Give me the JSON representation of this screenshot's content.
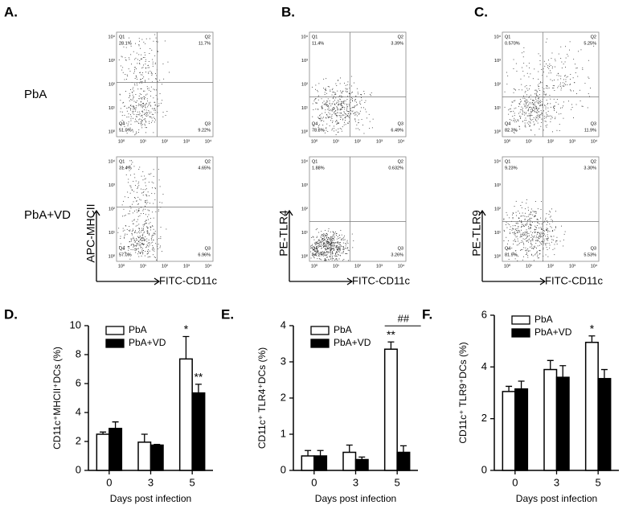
{
  "panels": [
    {
      "label": "A.",
      "y_label": "APC-MHCII",
      "x_label": "FITC-CD11c",
      "plots": [
        {
          "quadrants": [
            "Q1",
            "Q2",
            "Q4",
            "Q3"
          ],
          "percents": [
            "28.1%",
            "11.7%",
            "51.0%",
            "9.22%"
          ]
        },
        {
          "quadrants": [
            "Q1",
            "Q2",
            "Q4",
            "Q3"
          ],
          "percents": [
            "31.4%",
            "4.65%",
            "57.0%",
            "6.96%"
          ]
        }
      ]
    },
    {
      "label": "B.",
      "y_label": "PE-TLR4",
      "x_label": "FITC-CD11c",
      "plots": [
        {
          "quadrants": [
            "Q1",
            "Q2",
            "Q4",
            "Q3"
          ],
          "percents": [
            "11.4%",
            "3.39%",
            "78.8%",
            "6.49%"
          ]
        },
        {
          "quadrants": [
            "Q1",
            "Q2",
            "Q4",
            "Q3"
          ],
          "percents": [
            "1.88%",
            "0.632%",
            "94.2%",
            "3.26%"
          ]
        }
      ]
    },
    {
      "label": "C.",
      "y_label": "PE-TLR9",
      "x_label": "FITC-CD11c",
      "plots": [
        {
          "quadrants": [
            "Q1",
            "Q2",
            "Q4",
            "Q3"
          ],
          "percents": [
            "0.570%",
            "5.25%",
            "82.3%",
            "11.9%"
          ]
        },
        {
          "quadrants": [
            "Q1",
            "Q2",
            "Q4",
            "Q3"
          ],
          "percents": [
            "9.23%",
            "3.30%",
            "81.9%",
            "5.53%"
          ]
        }
      ]
    }
  ],
  "row_labels": [
    "PbA",
    "PbA+VD"
  ],
  "decade_lim": [
    0,
    4
  ],
  "decade_ticks": [
    {
      "value": 0,
      "label": "10⁰"
    },
    {
      "value": 1,
      "label": "10¹"
    },
    {
      "value": 2,
      "label": "10²"
    },
    {
      "value": 3,
      "label": "10³"
    },
    {
      "value": 4,
      "label": "10⁴"
    }
  ],
  "chart_data": [
    {
      "type": "bar",
      "panel": "D.",
      "y_label": "CD11c⁺MHCII⁺DCs (%)",
      "x_label": "Days post infection",
      "categories": [
        "0",
        "3",
        "5"
      ],
      "ylim": [
        0,
        10
      ],
      "yticks": [
        0,
        2,
        4,
        6,
        8,
        10
      ],
      "series": [
        {
          "name": "PbA",
          "color": "#ffffff",
          "values": [
            2.5,
            1.95,
            7.7
          ],
          "errors": [
            0.15,
            0.55,
            1.55
          ],
          "significance": [
            null,
            null,
            "*"
          ]
        },
        {
          "name": "PbA+VD",
          "color": "#000000",
          "values": [
            2.9,
            1.75,
            5.35
          ],
          "errors": [
            0.45,
            0.05,
            0.6
          ],
          "significance": [
            null,
            null,
            "**"
          ]
        }
      ]
    },
    {
      "type": "bar",
      "panel": "E.",
      "y_label": "CD11c⁺ TLR4⁺DCs (%)",
      "x_label": "Days post infection",
      "categories": [
        "0",
        "3",
        "5"
      ],
      "ylim": [
        0,
        4
      ],
      "yticks": [
        0,
        1,
        2,
        3,
        4
      ],
      "series": [
        {
          "name": "PbA",
          "color": "#ffffff",
          "values": [
            0.4,
            0.5,
            3.35
          ],
          "errors": [
            0.15,
            0.2,
            0.2
          ],
          "significance": [
            null,
            null,
            "**"
          ]
        },
        {
          "name": "PbA+VD",
          "color": "#000000",
          "values": [
            0.4,
            0.3,
            0.5
          ],
          "errors": [
            0.15,
            0.07,
            0.18
          ],
          "significance": [
            null,
            null,
            null
          ]
        }
      ],
      "group_annotation": [
        null,
        null,
        "##"
      ]
    },
    {
      "type": "bar",
      "panel": "F.",
      "y_label": "CD11c⁺ TLR9⁺DCs (%)",
      "x_label": "Days post infection",
      "categories": [
        "0",
        "3",
        "5"
      ],
      "ylim": [
        0,
        6
      ],
      "yticks": [
        0,
        2,
        4,
        6
      ],
      "series": [
        {
          "name": "PbA",
          "color": "#ffffff",
          "values": [
            3.05,
            3.9,
            4.95
          ],
          "errors": [
            0.2,
            0.35,
            0.25
          ],
          "significance": [
            null,
            null,
            "*"
          ]
        },
        {
          "name": "PbA+VD",
          "color": "#000000",
          "values": [
            3.15,
            3.6,
            3.55
          ],
          "errors": [
            0.3,
            0.45,
            0.35
          ],
          "significance": [
            null,
            null,
            null
          ]
        }
      ]
    }
  ]
}
